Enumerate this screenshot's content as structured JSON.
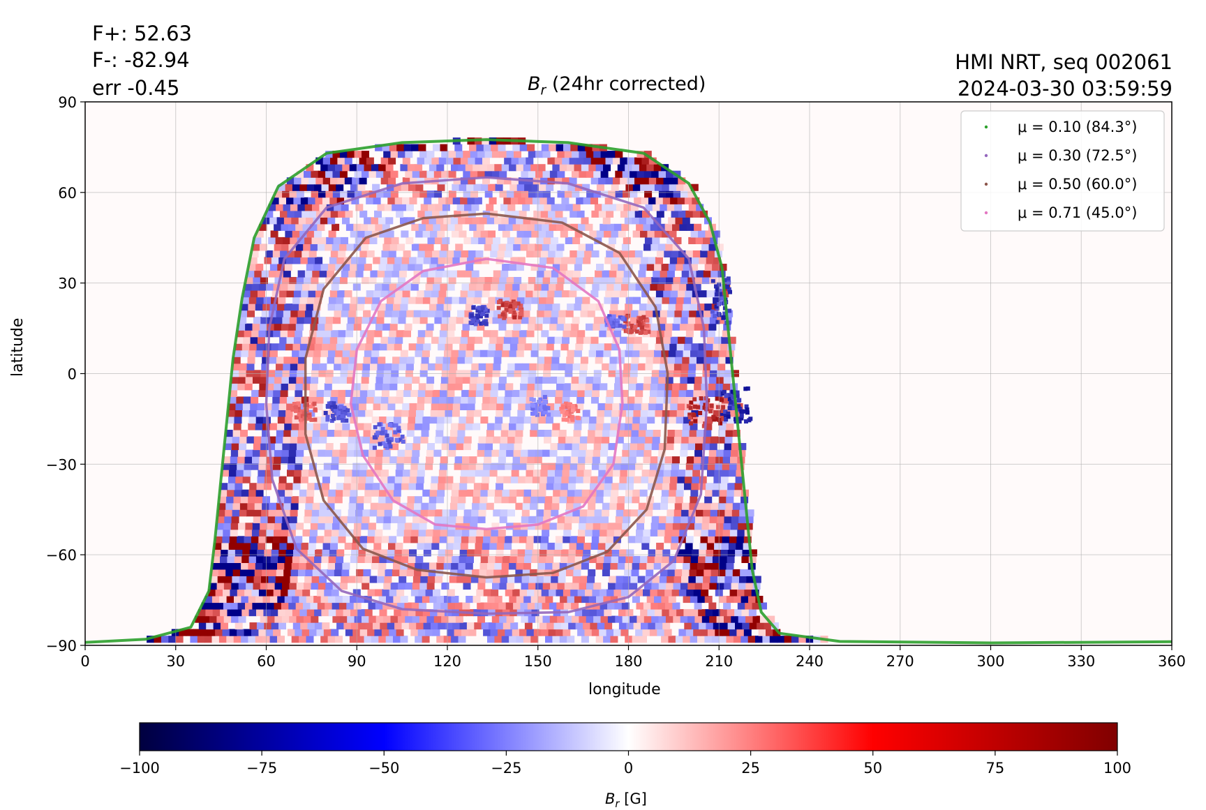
{
  "stats": {
    "f_plus": "F+: 52.63",
    "f_minus": "F-: -82.94",
    "err": "err -0.45"
  },
  "source": "HMI NRT, seq 002061",
  "timestamp": "2024-03-30 03:59:59",
  "colorbar": {
    "label": "B_r [G]",
    "ticks": [
      "−100",
      "−75",
      "−50",
      "−25",
      "0",
      "25",
      "50",
      "75",
      "100"
    ],
    "range": [
      -100,
      100
    ],
    "colormap": [
      "#00003f",
      "#0000ff",
      "#ffffff",
      "#ff0000",
      "#800000"
    ]
  },
  "chart_data": {
    "type": "heatmap",
    "title": "B_r (24hr corrected)",
    "xlabel": "longitude",
    "ylabel": "latitude",
    "xlim": [
      0,
      360
    ],
    "ylim": [
      -90,
      90
    ],
    "xticks": [
      "0",
      "30",
      "60",
      "90",
      "120",
      "150",
      "180",
      "210",
      "240",
      "270",
      "300",
      "330",
      "360"
    ],
    "yticks": [
      "−90",
      "−60",
      "−30",
      "0",
      "30",
      "60",
      "90"
    ],
    "grid": true,
    "legend_position": "top-right",
    "series": [
      {
        "name": "μ = 0.10 (84.3°)",
        "color": "#2ca02c",
        "points": [
          [
            0,
            -89
          ],
          [
            20,
            -88
          ],
          [
            35,
            -84
          ],
          [
            41,
            -72
          ],
          [
            43,
            -55
          ],
          [
            45,
            -35
          ],
          [
            47,
            -15
          ],
          [
            49,
            5
          ],
          [
            52,
            25
          ],
          [
            56,
            45
          ],
          [
            64,
            62
          ],
          [
            80,
            73
          ],
          [
            105,
            76.5
          ],
          [
            133,
            77.5
          ],
          [
            160,
            76.5
          ],
          [
            185,
            73
          ],
          [
            200,
            63
          ],
          [
            207,
            50
          ],
          [
            211,
            35
          ],
          [
            213,
            15
          ],
          [
            215,
            -5
          ],
          [
            217,
            -25
          ],
          [
            219,
            -45
          ],
          [
            221,
            -65
          ],
          [
            224,
            -79
          ],
          [
            230,
            -86
          ],
          [
            250,
            -88.7
          ],
          [
            300,
            -89.2
          ],
          [
            360,
            -88.8
          ]
        ]
      },
      {
        "name": "μ = 0.30 (72.5°)",
        "color": "#9467bd",
        "points": [
          [
            133,
            65
          ],
          [
            160,
            63
          ],
          [
            185,
            55
          ],
          [
            200,
            38
          ],
          [
            205,
            15
          ],
          [
            206,
            -10
          ],
          [
            204,
            -40
          ],
          [
            195,
            -62
          ],
          [
            180,
            -74
          ],
          [
            160,
            -79
          ],
          [
            133,
            -79.5
          ],
          [
            105,
            -78
          ],
          [
            85,
            -72
          ],
          [
            70,
            -58
          ],
          [
            62,
            -35
          ],
          [
            60,
            -10
          ],
          [
            61,
            15
          ],
          [
            66,
            38
          ],
          [
            80,
            55
          ],
          [
            105,
            63
          ],
          [
            133,
            65
          ]
        ]
      },
      {
        "name": "μ = 0.50 (60.0°)",
        "color": "#8c564b",
        "points": [
          [
            133,
            53
          ],
          [
            158,
            50
          ],
          [
            177,
            40
          ],
          [
            189,
            22
          ],
          [
            193,
            0
          ],
          [
            192,
            -25
          ],
          [
            186,
            -45
          ],
          [
            173,
            -59
          ],
          [
            155,
            -66
          ],
          [
            133,
            -67.5
          ],
          [
            110,
            -65
          ],
          [
            92,
            -58
          ],
          [
            79,
            -42
          ],
          [
            73,
            -20
          ],
          [
            73,
            5
          ],
          [
            79,
            28
          ],
          [
            93,
            45
          ],
          [
            112,
            51.5
          ],
          [
            133,
            53
          ]
        ]
      },
      {
        "name": "μ = 0.71 (45.0°)",
        "color": "#e377c2",
        "points": [
          [
            133,
            38
          ],
          [
            155,
            35
          ],
          [
            170,
            24
          ],
          [
            177,
            8
          ],
          [
            178,
            -10
          ],
          [
            175,
            -30
          ],
          [
            165,
            -44
          ],
          [
            150,
            -50
          ],
          [
            133,
            -51.5
          ],
          [
            116,
            -50
          ],
          [
            102,
            -42
          ],
          [
            92,
            -27
          ],
          [
            88,
            -10
          ],
          [
            90,
            8
          ],
          [
            98,
            24
          ],
          [
            112,
            34
          ],
          [
            133,
            38
          ]
        ]
      }
    ],
    "colorbar": {
      "label": "B_r [G]",
      "vmin": -100,
      "vmax": 100
    }
  }
}
